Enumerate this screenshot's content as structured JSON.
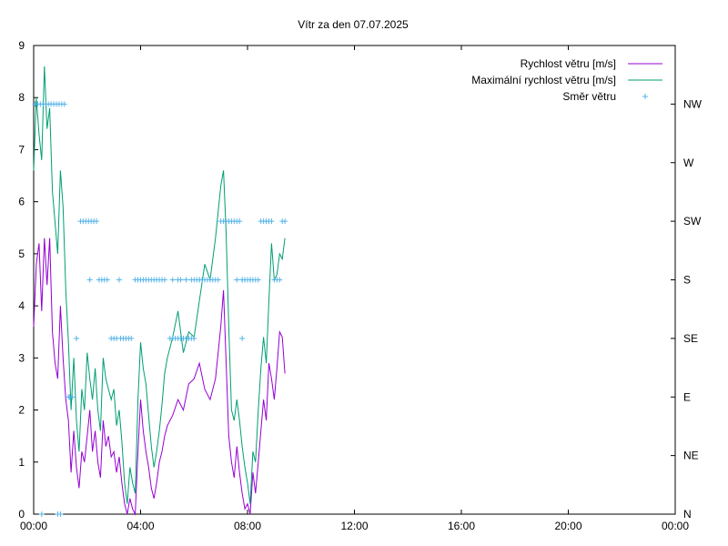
{
  "chart_data": {
    "type": "line",
    "title": "Vítr za den 07.07.2025",
    "xlabel": "",
    "ylabel": "",
    "x_unit": "hours",
    "xlim": [
      0,
      24
    ],
    "ylim": [
      0,
      9
    ],
    "x_ticks": [
      {
        "value": 0,
        "label": "00:00"
      },
      {
        "value": 4,
        "label": "04:00"
      },
      {
        "value": 8,
        "label": "08:00"
      },
      {
        "value": 12,
        "label": "12:00"
      },
      {
        "value": 16,
        "label": "16:00"
      },
      {
        "value": 20,
        "label": "20:00"
      },
      {
        "value": 24,
        "label": "00:00"
      }
    ],
    "y_ticks": [
      0,
      1,
      2,
      3,
      4,
      5,
      6,
      7,
      8,
      9
    ],
    "y2_ticks": [
      {
        "value": 0,
        "label": "N"
      },
      {
        "value": 45,
        "label": "NE"
      },
      {
        "value": 90,
        "label": "E"
      },
      {
        "value": 135,
        "label": "SE"
      },
      {
        "value": 180,
        "label": "S"
      },
      {
        "value": 225,
        "label": "SW"
      },
      {
        "value": 270,
        "label": "W"
      },
      {
        "value": 315,
        "label": "NW"
      }
    ],
    "y2lim": [
      0,
      360
    ],
    "grid": false,
    "legend_position": "top-right",
    "series": [
      {
        "name": "Rychlost větru [m/s]",
        "color": "#9400d3",
        "style": "line",
        "x": [
          0.0,
          0.1,
          0.2,
          0.3,
          0.4,
          0.5,
          0.6,
          0.7,
          0.8,
          0.9,
          1.0,
          1.1,
          1.2,
          1.3,
          1.4,
          1.5,
          1.6,
          1.7,
          1.8,
          1.9,
          2.0,
          2.1,
          2.2,
          2.3,
          2.4,
          2.5,
          2.6,
          2.7,
          2.8,
          2.9,
          3.0,
          3.1,
          3.2,
          3.3,
          3.4,
          3.5,
          3.6,
          3.7,
          3.8,
          3.9,
          4.0,
          4.1,
          4.2,
          4.3,
          4.4,
          4.5,
          4.6,
          4.7,
          4.8,
          4.9,
          5.0,
          5.2,
          5.4,
          5.6,
          5.8,
          6.0,
          6.2,
          6.4,
          6.6,
          6.8,
          7.0,
          7.1,
          7.2,
          7.3,
          7.4,
          7.5,
          7.6,
          7.7,
          7.8,
          7.9,
          8.0,
          8.1,
          8.2,
          8.3,
          8.4,
          8.5,
          8.6,
          8.7,
          8.8,
          8.9,
          9.0,
          9.1,
          9.2,
          9.3,
          9.4
        ],
        "y": [
          3.6,
          4.8,
          5.2,
          3.9,
          5.3,
          4.4,
          5.3,
          3.5,
          2.9,
          2.6,
          4.0,
          3.0,
          2.2,
          1.8,
          0.8,
          1.6,
          0.9,
          0.5,
          1.2,
          1.0,
          1.5,
          2.0,
          1.2,
          1.6,
          1.0,
          0.7,
          1.8,
          1.3,
          1.5,
          1.1,
          1.2,
          0.8,
          1.1,
          0.6,
          0.2,
          0.0,
          0.3,
          0.1,
          0.0,
          1.2,
          2.2,
          1.6,
          1.2,
          0.9,
          0.5,
          0.3,
          0.6,
          1.0,
          1.2,
          1.5,
          1.7,
          1.9,
          2.2,
          2.0,
          2.5,
          2.6,
          2.9,
          2.4,
          2.2,
          2.6,
          3.6,
          4.3,
          2.9,
          1.5,
          1.0,
          0.7,
          1.3,
          0.8,
          0.4,
          0.1,
          0.2,
          0.0,
          0.8,
          0.4,
          1.0,
          1.6,
          2.2,
          1.8,
          2.9,
          2.6,
          2.2,
          2.8,
          3.5,
          3.4,
          2.7
        ]
      },
      {
        "name": "Maximální rychlost větru [m/s]",
        "color": "#009e73",
        "style": "line",
        "x": [
          0.0,
          0.1,
          0.2,
          0.3,
          0.4,
          0.5,
          0.6,
          0.7,
          0.8,
          0.9,
          1.0,
          1.1,
          1.2,
          1.3,
          1.4,
          1.5,
          1.6,
          1.7,
          1.8,
          1.9,
          2.0,
          2.1,
          2.2,
          2.3,
          2.4,
          2.5,
          2.6,
          2.7,
          2.8,
          2.9,
          3.0,
          3.1,
          3.2,
          3.3,
          3.4,
          3.5,
          3.6,
          3.7,
          3.8,
          3.9,
          4.0,
          4.1,
          4.2,
          4.3,
          4.4,
          4.5,
          4.6,
          4.7,
          4.8,
          4.9,
          5.0,
          5.2,
          5.4,
          5.6,
          5.8,
          6.0,
          6.2,
          6.4,
          6.6,
          6.8,
          7.0,
          7.1,
          7.2,
          7.3,
          7.4,
          7.5,
          7.6,
          7.7,
          7.8,
          7.9,
          8.0,
          8.1,
          8.2,
          8.3,
          8.4,
          8.5,
          8.6,
          8.7,
          8.8,
          8.9,
          9.0,
          9.1,
          9.2,
          9.3,
          9.4
        ],
        "y": [
          6.6,
          8.0,
          7.3,
          6.8,
          8.6,
          7.4,
          7.8,
          6.2,
          5.6,
          5.0,
          6.6,
          5.9,
          4.3,
          3.3,
          2.0,
          3.0,
          1.8,
          1.2,
          2.4,
          2.0,
          3.1,
          2.6,
          2.2,
          2.8,
          2.0,
          1.6,
          3.0,
          2.6,
          2.4,
          2.2,
          2.4,
          1.7,
          2.0,
          1.4,
          0.6,
          0.2,
          0.9,
          0.6,
          0.4,
          2.2,
          3.3,
          2.8,
          2.5,
          1.9,
          1.3,
          0.9,
          1.2,
          1.6,
          2.1,
          2.7,
          3.0,
          3.4,
          3.9,
          3.1,
          3.5,
          3.4,
          4.1,
          4.8,
          4.5,
          5.3,
          6.3,
          6.6,
          5.4,
          3.6,
          2.0,
          1.8,
          2.2,
          1.8,
          1.3,
          0.9,
          0.6,
          0.2,
          1.2,
          1.0,
          2.0,
          2.8,
          3.4,
          2.9,
          4.1,
          5.2,
          4.5,
          4.6,
          5.0,
          4.9,
          5.3
        ]
      },
      {
        "name": "Směr větru",
        "color": "#56b4e9",
        "style": "points",
        "axis": "y2",
        "x": [
          0.05,
          0.15,
          0.25,
          0.35,
          0.45,
          0.55,
          0.65,
          0.75,
          0.85,
          0.95,
          1.05,
          1.15,
          0.3,
          0.9,
          1.0,
          1.3,
          1.35,
          1.45,
          1.6,
          1.75,
          1.85,
          1.95,
          2.05,
          2.15,
          2.25,
          2.35,
          2.1,
          2.45,
          2.55,
          2.65,
          2.75,
          3.2,
          2.9,
          3.0,
          3.1,
          3.25,
          3.35,
          3.45,
          3.55,
          3.65,
          3.8,
          3.9,
          4.0,
          4.1,
          4.2,
          4.3,
          4.4,
          4.5,
          4.6,
          4.7,
          4.8,
          4.9,
          5.1,
          5.2,
          5.3,
          5.4,
          5.5,
          5.6,
          5.7,
          5.8,
          5.9,
          6.0,
          6.1,
          6.2,
          6.3,
          6.4,
          6.5,
          6.6,
          6.7,
          6.8,
          6.9,
          7.0,
          7.1,
          7.2,
          7.3,
          7.4,
          7.5,
          7.6,
          7.7,
          7.8,
          7.9,
          8.0,
          8.1,
          8.2,
          8.3,
          8.4,
          8.5,
          8.6,
          8.7,
          8.8,
          8.9,
          9.0,
          9.1,
          9.2,
          9.3,
          9.4,
          7.6,
          7.8,
          7.9,
          8.1,
          5.2,
          5.4,
          5.5,
          5.7,
          5.9,
          6.0,
          6.2,
          7.8
        ],
        "y": [
          315,
          315,
          315,
          315,
          315,
          315,
          315,
          315,
          315,
          315,
          315,
          315,
          0,
          0,
          0,
          90,
          90,
          90,
          135,
          225,
          225,
          225,
          225,
          225,
          225,
          225,
          180,
          180,
          180,
          180,
          180,
          180,
          135,
          135,
          135,
          135,
          135,
          135,
          135,
          135,
          180,
          180,
          180,
          180,
          180,
          180,
          180,
          180,
          180,
          180,
          180,
          180,
          135,
          135,
          135,
          135,
          135,
          135,
          135,
          135,
          135,
          135,
          180,
          180,
          180,
          180,
          180,
          180,
          180,
          180,
          180,
          225,
          225,
          225,
          225,
          225,
          225,
          225,
          225,
          180,
          180,
          180,
          180,
          180,
          180,
          180,
          225,
          225,
          225,
          225,
          225,
          180,
          180,
          180,
          225,
          225,
          180,
          180,
          180,
          180,
          180,
          180,
          180,
          180,
          180,
          180,
          180,
          135
        ]
      }
    ]
  }
}
